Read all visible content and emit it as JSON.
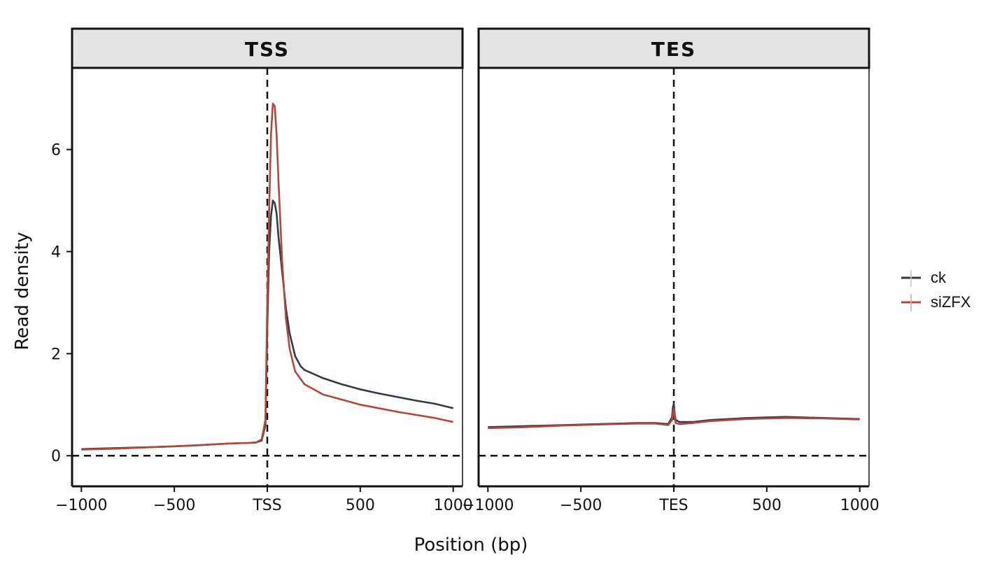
{
  "chart_data": {
    "type": "line",
    "xlabel": "Position (bp)",
    "ylabel": "Read density",
    "ylim": [
      -0.6,
      7.6
    ],
    "yticks": [
      0,
      2,
      4,
      6
    ],
    "grid": false,
    "legend_position": "right",
    "reference_lines": {
      "x": 0,
      "y": 0,
      "style": "dashed"
    },
    "colors": {
      "ck": "#2f3b4d",
      "siZFX": "#b5463a"
    },
    "panels": [
      {
        "strip": "TSS",
        "xlim": [
          -1050,
          1050
        ],
        "xticks": [
          -1000,
          -500,
          0,
          500,
          1000
        ],
        "xtick_labels": [
          "−1000",
          "−500",
          "TSS",
          "500",
          "1000"
        ],
        "x": [
          -1000,
          -800,
          -600,
          -400,
          -300,
          -200,
          -100,
          -60,
          -30,
          -10,
          0,
          10,
          20,
          30,
          40,
          50,
          60,
          80,
          100,
          120,
          150,
          180,
          200,
          300,
          400,
          500,
          600,
          700,
          800,
          900,
          1000
        ],
        "series": [
          {
            "name": "ck",
            "values": [
              0.13,
              0.15,
              0.17,
              0.2,
              0.22,
              0.24,
              0.25,
              0.26,
              0.3,
              0.6,
              2.5,
              4.0,
              4.7,
              5.0,
              4.95,
              4.75,
              4.3,
              3.6,
              2.9,
              2.4,
              1.95,
              1.75,
              1.68,
              1.52,
              1.4,
              1.3,
              1.22,
              1.15,
              1.08,
              1.02,
              0.93
            ]
          },
          {
            "name": "siZFX",
            "values": [
              0.12,
              0.14,
              0.17,
              0.2,
              0.22,
              0.24,
              0.25,
              0.26,
              0.32,
              0.7,
              3.0,
              4.8,
              6.3,
              6.9,
              6.85,
              6.3,
              5.4,
              3.8,
              2.7,
              2.1,
              1.65,
              1.5,
              1.4,
              1.2,
              1.1,
              1.0,
              0.93,
              0.86,
              0.8,
              0.74,
              0.66
            ]
          }
        ]
      },
      {
        "strip": "TES",
        "xlim": [
          -1050,
          1050
        ],
        "xticks": [
          -1000,
          -500,
          0,
          500,
          1000
        ],
        "xtick_labels": [
          "−1000",
          "−500",
          "TES",
          "500",
          "1000"
        ],
        "x": [
          -1000,
          -800,
          -600,
          -400,
          -200,
          -100,
          -30,
          -10,
          -5,
          0,
          5,
          10,
          30,
          100,
          200,
          400,
          600,
          800,
          1000
        ],
        "series": [
          {
            "name": "ck",
            "values": [
              0.56,
              0.58,
              0.6,
              0.62,
              0.64,
              0.64,
              0.62,
              0.75,
              0.95,
              1.02,
              0.8,
              0.7,
              0.66,
              0.66,
              0.7,
              0.74,
              0.76,
              0.74,
              0.72
            ]
          },
          {
            "name": "siZFX",
            "values": [
              0.54,
              0.56,
              0.59,
              0.61,
              0.63,
              0.63,
              0.6,
              0.7,
              0.85,
              0.92,
              0.72,
              0.64,
              0.62,
              0.64,
              0.68,
              0.72,
              0.74,
              0.73,
              0.71
            ]
          }
        ]
      }
    ],
    "legend": [
      {
        "name": "ck",
        "color": "#2f3b4d"
      },
      {
        "name": "siZFX",
        "color": "#b5463a"
      }
    ]
  }
}
